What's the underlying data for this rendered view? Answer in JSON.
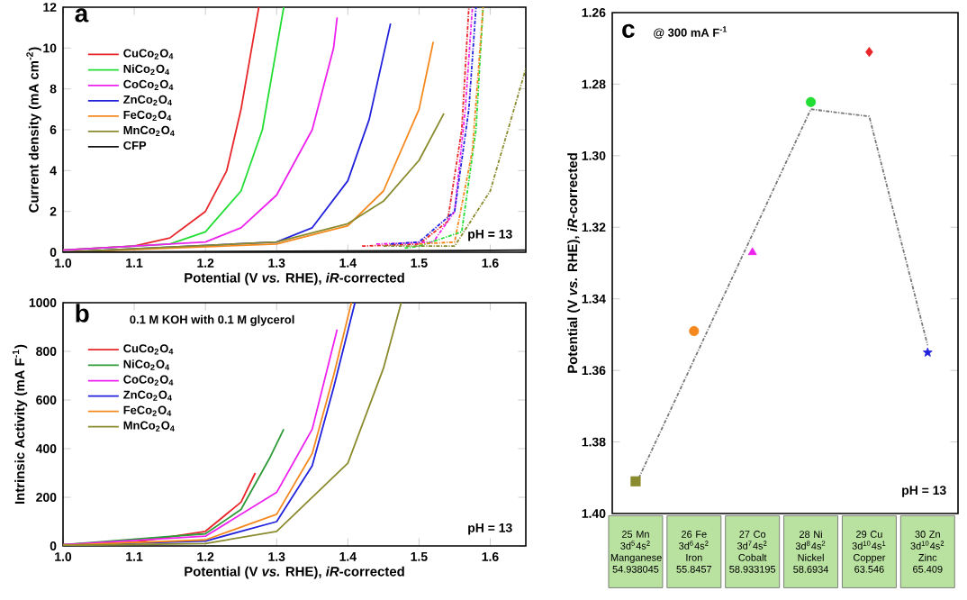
{
  "chart_data": [
    {
      "type": "line",
      "title": "a",
      "xlabel": "Potential (V *vs.* RHE), *iR*-corrected",
      "ylabel": "Current density (mA cm$^{-2}$)",
      "xlim": [
        1.0,
        1.65
      ],
      "xticks": [
        {
          "value": 1.0,
          "label": "1.0"
        },
        1.1,
        1.2,
        1.3,
        1.4,
        1.5,
        1.6
      ],
      "ylim": [
        0,
        12
      ],
      "yticks": [
        0,
        2,
        4,
        6,
        8,
        10,
        12
      ],
      "legend": "top left",
      "annotations": [
        "pH = 13"
      ],
      "series": [
        {
          "name": "CuCo$_{2}$O$_{4}$",
          "color": "#e8262a",
          "x": [
            1.0,
            1.1,
            1.15,
            1.2,
            1.23,
            1.25,
            1.27,
            1.275
          ],
          "values": [
            0.1,
            0.3,
            0.7,
            2,
            4,
            7,
            11,
            12
          ]
        },
        {
          "name": "NiCo$_{2}$O$_{4}$",
          "color": "#22dd33",
          "x": [
            1.0,
            1.15,
            1.2,
            1.25,
            1.28,
            1.3,
            1.31
          ],
          "values": [
            0.1,
            0.4,
            1.0,
            3,
            6,
            10,
            12
          ]
        },
        {
          "name": "CoCo$_{2}$O$_{4}$",
          "color": "#ee22ee",
          "x": [
            1.0,
            1.2,
            1.25,
            1.3,
            1.35,
            1.38,
            1.385
          ],
          "values": [
            0.1,
            0.5,
            1.2,
            2.8,
            6,
            10,
            11.5
          ]
        },
        {
          "name": "ZnCo$_{2}$O$_{4}$",
          "color": "#2222dd",
          "x": [
            1.0,
            1.3,
            1.35,
            1.4,
            1.43,
            1.46
          ],
          "values": [
            0,
            0.5,
            1.2,
            3.5,
            6.5,
            11.2
          ]
        },
        {
          "name": "FeCo$_{2}$O$_{4}$",
          "color": "#f5891f",
          "x": [
            1.0,
            1.3,
            1.4,
            1.45,
            1.5,
            1.52
          ],
          "values": [
            0,
            0.4,
            1.3,
            3,
            7,
            10.3
          ]
        },
        {
          "name": "MnCo$_{2}$O$_{4}$",
          "color": "#8a8a2e",
          "x": [
            1.0,
            1.3,
            1.4,
            1.45,
            1.5,
            1.535
          ],
          "values": [
            0,
            0.5,
            1.4,
            2.5,
            4.5,
            6.8
          ]
        },
        {
          "name": "CFP",
          "color": "#111111",
          "x": [
            1.0,
            1.65
          ],
          "values": [
            0,
            0.1
          ]
        },
        {
          "color": "#e8262a",
          "line_style": "dashed",
          "x": [
            1.42,
            1.5,
            1.54,
            1.56,
            1.57
          ],
          "values": [
            0.3,
            0.4,
            1.5,
            6,
            12
          ]
        },
        {
          "color": "#ee22ee",
          "line_style": "dashed",
          "x": [
            1.44,
            1.52,
            1.55,
            1.565,
            1.575
          ],
          "values": [
            0.4,
            0.5,
            2,
            7,
            12
          ]
        },
        {
          "color": "#2222dd",
          "line_style": "dashed",
          "x": [
            1.46,
            1.5,
            1.55,
            1.57,
            1.58
          ],
          "values": [
            0.4,
            0.5,
            2,
            7,
            12
          ]
        },
        {
          "color": "#22dd33",
          "line_style": "dashed",
          "x": [
            1.48,
            1.5,
            1.56,
            1.58,
            1.59
          ],
          "values": [
            0.2,
            0.3,
            1,
            6,
            12
          ]
        },
        {
          "color": "#f5891f",
          "line_style": "dashed",
          "x": [
            1.5,
            1.55,
            1.575,
            1.59
          ],
          "values": [
            0.4,
            0.5,
            5,
            12
          ]
        },
        {
          "color": "#8a8a2e",
          "line_style": "dashed",
          "x": [
            1.45,
            1.55,
            1.6,
            1.65
          ],
          "values": [
            0.3,
            0.3,
            3,
            9
          ]
        }
      ]
    },
    {
      "type": "line",
      "title": "b",
      "subtitle": "0.1 M KOH with 0.1 M glycerol",
      "xlabel": "Potential (V *vs.* RHE), *iR*-corrected",
      "ylabel": "Intrinsic Activity (mA F$^{-1}$)",
      "xlim": [
        1.0,
        1.65
      ],
      "xticks": [
        {
          "value": 1.0,
          "label": "1.0"
        },
        1.1,
        1.2,
        1.3,
        1.4,
        1.5,
        1.6
      ],
      "ylim": [
        0,
        1000
      ],
      "yticks": [
        0,
        200,
        400,
        600,
        800,
        1000
      ],
      "legend": "top left",
      "annotations": [
        "pH = 13"
      ],
      "series": [
        {
          "name": "CuCo$_{2}$O$_{4}$",
          "color": "#e8262a",
          "x": [
            1.0,
            1.1,
            1.2,
            1.25,
            1.27
          ],
          "values": [
            5,
            15,
            60,
            180,
            300
          ]
        },
        {
          "name": "NiCo$_{2}$O$_{4}$",
          "color": "#2e9a3a",
          "x": [
            1.0,
            1.2,
            1.25,
            1.29,
            1.31
          ],
          "values": [
            5,
            50,
            150,
            360,
            480
          ]
        },
        {
          "name": "CoCo$_{2}$O$_{4}$",
          "color": "#ee22ee",
          "x": [
            1.0,
            1.2,
            1.3,
            1.35,
            1.385
          ],
          "values": [
            5,
            40,
            220,
            480,
            890
          ]
        },
        {
          "name": "ZnCo$_{2}$O$_{4}$",
          "color": "#2222dd",
          "x": [
            1.0,
            1.2,
            1.3,
            1.35,
            1.38,
            1.41
          ],
          "values": [
            3,
            20,
            100,
            330,
            650,
            1000
          ]
        },
        {
          "name": "FeCo$_{2}$O$_{4}$",
          "color": "#f5891f",
          "x": [
            1.0,
            1.2,
            1.3,
            1.35,
            1.38,
            1.405
          ],
          "values": [
            3,
            25,
            130,
            380,
            700,
            1000
          ]
        },
        {
          "name": "MnCo$_{2}$O$_{4}$",
          "color": "#8a8a2e",
          "x": [
            1.0,
            1.2,
            1.3,
            1.4,
            1.45,
            1.475
          ],
          "values": [
            2,
            10,
            60,
            340,
            730,
            1000
          ]
        }
      ]
    },
    {
      "type": "scatter",
      "title": "c",
      "subtitle": "@ 300 mA F$^{-1}$",
      "ylabel": "Potential (V *vs.* RHE), *iR*-corrected",
      "ylim": [
        1.4,
        1.26
      ],
      "yticks": [
        1.26,
        1.28,
        {
          "value": 1.3,
          "label": "1.30"
        },
        1.32,
        1.34,
        1.36,
        1.38,
        {
          "value": 1.4,
          "label": "1.40"
        }
      ],
      "annotations": [
        "pH = 13"
      ],
      "categories": [
        "25 Mn 3d$^{5}$4s$^{2}$ Manganese 54.938045",
        "26 Fe 3d$^{6}$4s$^{2}$ Iron 55.8457",
        "27 Co 3d$^{7}$4s$^{2}$ Cobalt 58.933195",
        "28 Ni 3d$^{8}$4s$^{2}$ Nickel 58.6934",
        "29 Cu 3d$^{10}$4s$^{1}$ Copper 63.546",
        "30 Zn 3d$^{10}$4s$^{2}$ Zinc 65.409"
      ],
      "series": [
        {
          "color": "#8a8a2e",
          "marker": "square",
          "values": [
            1.391,
            null,
            null,
            null,
            null,
            null
          ]
        },
        {
          "color": "#f5891f",
          "marker": "circle",
          "values": [
            null,
            1.349,
            null,
            null,
            null,
            null
          ]
        },
        {
          "color": "#ee22ee",
          "marker": "triangle",
          "values": [
            null,
            null,
            1.327,
            null,
            null,
            null
          ]
        },
        {
          "color": "#22dd33",
          "marker": "circle",
          "values": [
            null,
            null,
            null,
            1.285,
            null,
            null
          ]
        },
        {
          "color": "#e8262a",
          "marker": "diamond",
          "values": [
            null,
            null,
            null,
            null,
            1.271,
            null
          ]
        },
        {
          "color": "#2222dd",
          "marker": "star",
          "values": [
            null,
            null,
            null,
            null,
            null,
            1.355
          ]
        },
        {
          "type": "line",
          "color": "#777777",
          "line_style": "dashed",
          "values": [
            1.392,
            1.357,
            1.322,
            1.287,
            1.289,
            1.353
          ]
        }
      ]
    }
  ]
}
